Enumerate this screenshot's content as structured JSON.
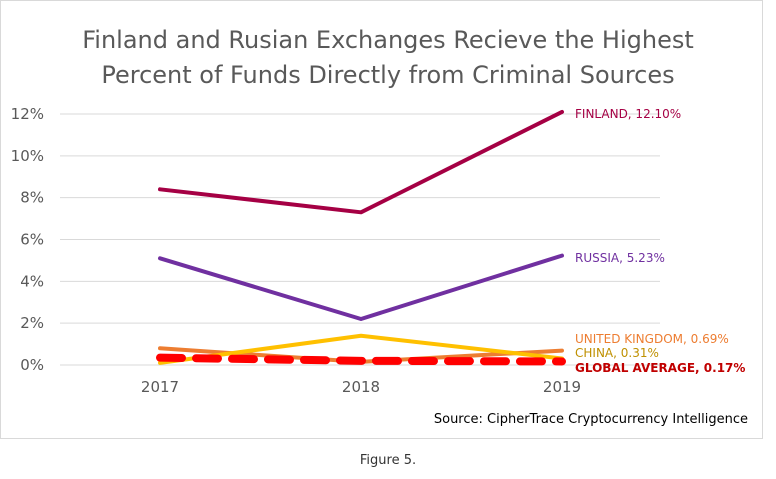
{
  "chart_data": {
    "type": "line",
    "title": "Finland and Rusian Exchanges Recieve the Highest Percent of Funds Directly from Criminal Sources",
    "title_lines": [
      "Finland and Rusian Exchanges Recieve the Highest",
      "Percent of Funds Directly from Criminal Sources"
    ],
    "categories": [
      "2017",
      "2018",
      "2019"
    ],
    "ylim": [
      0,
      12
    ],
    "yticks": [
      "0%",
      "2%",
      "4%",
      "6%",
      "8%",
      "10%",
      "12%"
    ],
    "grid": true,
    "legend": "none (end-of-line labels)",
    "series": [
      {
        "name": "FINLAND",
        "label": "FINLAND, 12.10%",
        "values": [
          8.4,
          7.3,
          12.1
        ],
        "color": "#A50044"
      },
      {
        "name": "RUSSIA",
        "label": "RUSSIA, 5.23%",
        "values": [
          5.1,
          2.2,
          5.23
        ],
        "color": "#7030A0"
      },
      {
        "name": "UNITED KINGDOM",
        "label": "UNITED KINGDOM, 0.69%",
        "values": [
          0.8,
          0.15,
          0.69
        ],
        "color": "#ED7D31"
      },
      {
        "name": "CHINA",
        "label": "CHINA, 0.31%",
        "values": [
          0.1,
          1.4,
          0.31
        ],
        "color": "#FFC000"
      },
      {
        "name": "GLOBAL AVERAGE",
        "label": "GLOBAL AVERAGE, 0.17%",
        "values": [
          0.35,
          0.2,
          0.17
        ],
        "color": "#FF0000",
        "dashed": true
      }
    ],
    "source": "Source: CipherTrace Cryptocurrency Intelligence"
  },
  "caption": "Figure 5.",
  "label_colors": {
    "FINLAND": "#A50044",
    "RUSSIA": "#7030A0",
    "UNITED KINGDOM": "#ED7D31",
    "CHINA": "#BF9000",
    "GLOBAL AVERAGE": "#C00000"
  }
}
